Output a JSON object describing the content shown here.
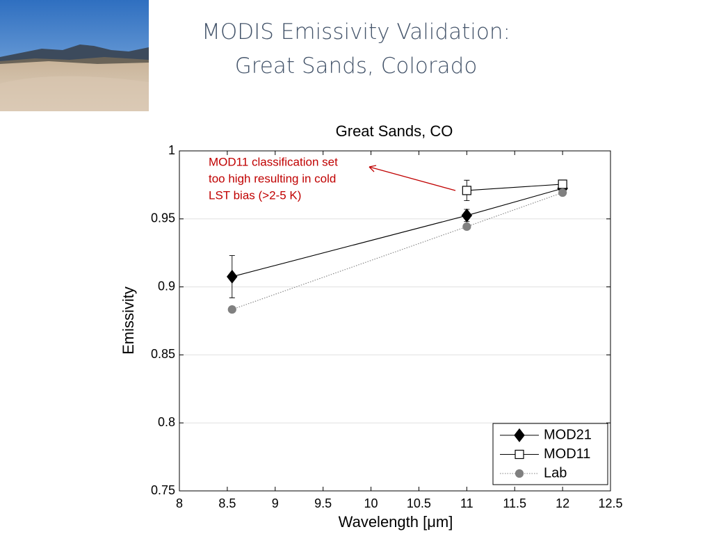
{
  "slide": {
    "title_lines": [
      "MODIS Emissivity Validation:",
      "Great Sands, Colorado"
    ]
  },
  "chart_data": {
    "type": "line",
    "title": "Great Sands, CO",
    "xlabel": "Wavelength [μm]",
    "ylabel": "Emissivity",
    "x": [
      8.55,
      11,
      12
    ],
    "xlim": [
      8,
      12.5
    ],
    "xticks": [
      8,
      8.5,
      9,
      9.5,
      10,
      10.5,
      11,
      11.5,
      12,
      12.5
    ],
    "ylim": [
      0.75,
      1
    ],
    "yticks": [
      0.75,
      0.8,
      0.85,
      0.9,
      0.95,
      1
    ],
    "grid": "y",
    "legend": "lower right",
    "series": [
      {
        "name": "MOD21",
        "color": "#000000",
        "marker": "diamond",
        "marker_fill": "#000000",
        "linestyle": "solid",
        "values": [
          0.9075,
          0.9525,
          0.9724
        ],
        "errors": [
          0.0155,
          0.0045,
          0.002
        ]
      },
      {
        "name": "MOD11",
        "color": "#000000",
        "marker": "square",
        "marker_fill": "#ffffff",
        "linestyle": "solid",
        "values": [
          null,
          0.9709,
          0.9755
        ],
        "errors": [
          null,
          0.0075,
          0.003
        ]
      },
      {
        "name": "Lab",
        "color": "#808080",
        "marker": "circle",
        "marker_fill": "#808080",
        "linestyle": "dotted",
        "values": [
          0.8834,
          0.9443,
          0.9693
        ]
      }
    ],
    "annotation": {
      "lines": [
        "MOD11 classification set",
        "too high resulting in cold",
        "LST bias (>2-5  K)"
      ],
      "color": "#c00000"
    }
  }
}
